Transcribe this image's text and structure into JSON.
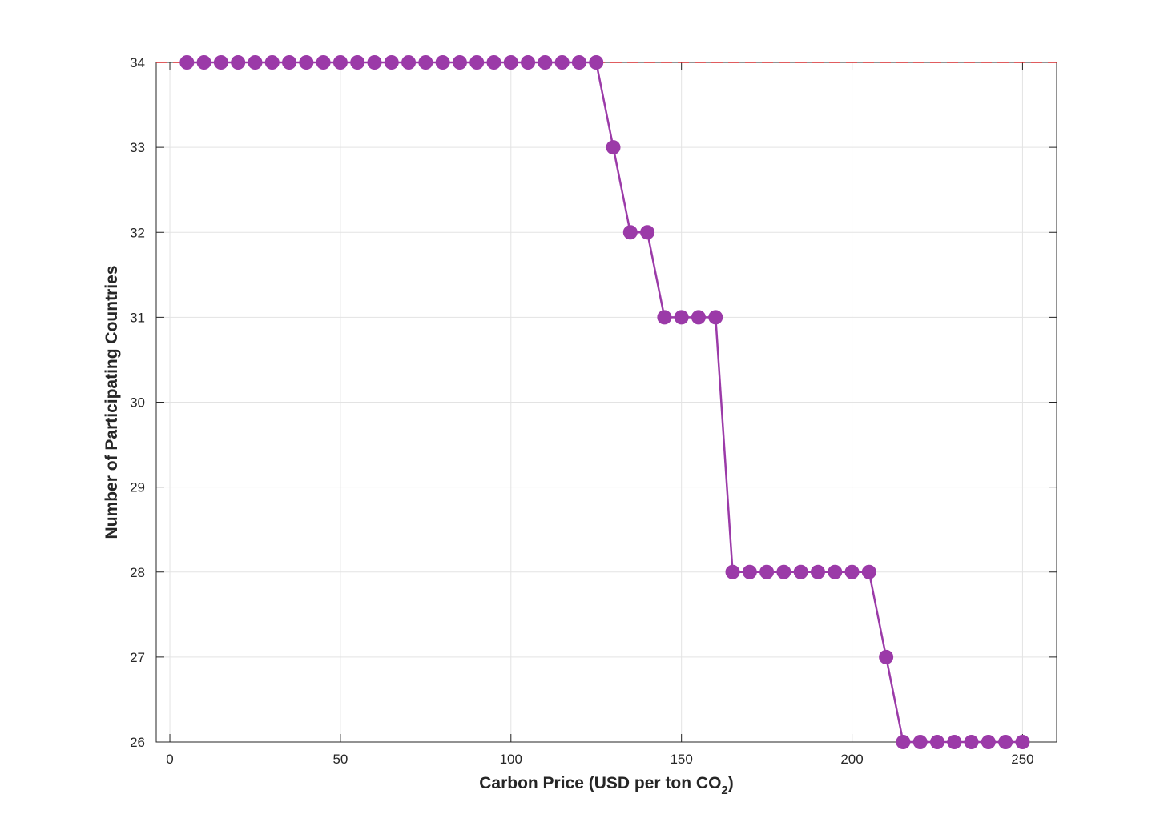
{
  "chart_data": {
    "type": "line",
    "title": "",
    "xlabel": "Carbon Price (USD per ton CO",
    "xlabel_subscript": "2",
    "xlabel_suffix": ")",
    "ylabel": "Number of Participating Countries",
    "xlim": [
      -4,
      260
    ],
    "ylim": [
      26,
      34
    ],
    "xticks": [
      0,
      50,
      100,
      150,
      200,
      250
    ],
    "yticks": [
      26,
      27,
      28,
      29,
      30,
      31,
      32,
      33,
      34
    ],
    "grid": true,
    "series": [
      {
        "color": "#9b3aa8",
        "marker": "circle",
        "x": [
          5,
          10,
          15,
          20,
          25,
          30,
          35,
          40,
          45,
          50,
          55,
          60,
          65,
          70,
          75,
          80,
          85,
          90,
          95,
          100,
          105,
          110,
          115,
          120,
          125,
          130,
          135,
          140,
          145,
          150,
          155,
          160,
          165,
          170,
          175,
          180,
          185,
          190,
          195,
          200,
          205,
          210,
          215,
          220,
          225,
          230,
          235,
          240,
          245,
          250
        ],
        "y": [
          34,
          34,
          34,
          34,
          34,
          34,
          34,
          34,
          34,
          34,
          34,
          34,
          34,
          34,
          34,
          34,
          34,
          34,
          34,
          34,
          34,
          34,
          34,
          34,
          34,
          33,
          32,
          32,
          31,
          31,
          31,
          31,
          28,
          28,
          28,
          28,
          28,
          28,
          28,
          28,
          28,
          27,
          26,
          26,
          26,
          26,
          26,
          26,
          26,
          26
        ]
      }
    ],
    "reference_line": {
      "y": 34,
      "style": "dashed",
      "color": "#d62728"
    }
  }
}
